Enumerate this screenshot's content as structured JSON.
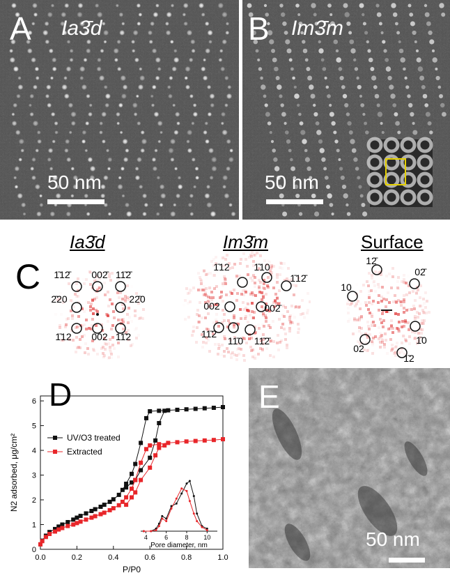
{
  "panelA": {
    "label": "A",
    "symmetry": "Ia3̄d",
    "scale": "50 nm"
  },
  "panelB": {
    "label": "B",
    "symmetry": "Im3̄m",
    "scale": "50 nm"
  },
  "panelC": {
    "label": "C",
    "fft1": {
      "title": "Ia3̄d",
      "spots": [
        "1̄12̄",
        "002̄",
        "11̄2̄",
        "2̄20",
        "22̄0",
        "1̄12",
        "002",
        "11̄2"
      ]
    },
    "fft2": {
      "title": "Im3̄m",
      "spots": [
        "1̄12",
        "1̄10",
        "1̄12̄",
        "002",
        "002̄",
        "11̄2",
        "11̄0",
        "11̄2̄"
      ]
    },
    "fft3": {
      "title": "Surface",
      "spots": [
        "12̄",
        "02̄",
        "10",
        "1̄0",
        "02",
        "1̄2"
      ]
    }
  },
  "panelD": {
    "label": "D",
    "chart_data": [
      {
        "type": "line",
        "xlabel": "P/P0",
        "ylabel": "N2 adsorbed, μg/cm²",
        "xlim": [
          0,
          1.0
        ],
        "ylim": [
          0,
          6.2
        ],
        "xticks": [
          "0.0",
          "0.2",
          "0.4",
          "0.6",
          "0.8",
          "1.0"
        ],
        "yticks": [
          "0",
          "1",
          "2",
          "3",
          "4",
          "5",
          "6"
        ],
        "legend_position": "middle-left",
        "series": [
          {
            "name": "UV/O3 treated",
            "color": "#111111",
            "adsorption": {
              "x": [
                0.0,
                0.01,
                0.03,
                0.05,
                0.08,
                0.1,
                0.12,
                0.15,
                0.18,
                0.2,
                0.22,
                0.25,
                0.28,
                0.3,
                0.33,
                0.35,
                0.38,
                0.4,
                0.43,
                0.45,
                0.47,
                0.5,
                0.52,
                0.55,
                0.58,
                0.6,
                0.65,
                0.7,
                0.75,
                0.8,
                0.85,
                0.9,
                0.95,
                1.0
              ],
              "y": [
                0.2,
                0.35,
                0.55,
                0.7,
                0.82,
                0.92,
                1.0,
                1.1,
                1.2,
                1.28,
                1.35,
                1.45,
                1.55,
                1.62,
                1.72,
                1.8,
                1.92,
                2.02,
                2.2,
                2.4,
                2.65,
                3.05,
                3.45,
                4.3,
                5.3,
                5.58,
                5.6,
                5.62,
                5.64,
                5.66,
                5.68,
                5.7,
                5.72,
                5.75
              ]
            },
            "desorption": {
              "x": [
                0.47,
                0.5,
                0.52,
                0.55,
                0.6,
                0.63,
                0.65,
                0.68
              ],
              "y": [
                2.5,
                2.7,
                2.8,
                3.2,
                3.7,
                4.4,
                5.1,
                5.6
              ]
            }
          },
          {
            "name": "Extracted",
            "color": "#e8262a",
            "adsorption": {
              "x": [
                0.0,
                0.01,
                0.03,
                0.05,
                0.08,
                0.1,
                0.12,
                0.15,
                0.18,
                0.2,
                0.22,
                0.25,
                0.28,
                0.3,
                0.33,
                0.35,
                0.38,
                0.4,
                0.43,
                0.45,
                0.47,
                0.5,
                0.52,
                0.55,
                0.58,
                0.6,
                0.65,
                0.7,
                0.75,
                0.8,
                0.85,
                0.9,
                0.95,
                1.0
              ],
              "y": [
                0.2,
                0.33,
                0.5,
                0.62,
                0.72,
                0.8,
                0.86,
                0.94,
                1.0,
                1.06,
                1.12,
                1.2,
                1.28,
                1.34,
                1.42,
                1.48,
                1.58,
                1.66,
                1.78,
                1.92,
                2.1,
                2.45,
                2.8,
                3.5,
                4.05,
                4.2,
                4.25,
                4.3,
                4.33,
                4.36,
                4.38,
                4.4,
                4.42,
                4.45
              ]
            },
            "desorption": {
              "x": [
                0.47,
                0.5,
                0.52,
                0.55,
                0.6,
                0.63,
                0.65,
                0.68
              ],
              "y": [
                1.8,
                2.1,
                2.3,
                2.8,
                3.3,
                3.8,
                4.1,
                4.2
              ]
            }
          }
        ]
      },
      {
        "type": "line",
        "xlabel": "Pore diameter, nm",
        "xlim": [
          3.5,
          11
        ],
        "xticks": [
          "4",
          "6",
          "8",
          "10"
        ],
        "series": [
          {
            "name": "UV/O3 treated",
            "color": "#111111",
            "x": [
              3.8,
              4.5,
              5.0,
              5.3,
              5.6,
              6.0,
              6.5,
              7.0,
              7.5,
              8.0,
              8.3,
              8.7,
              9.0,
              9.5,
              10.0
            ],
            "y": [
              0.0,
              0.0,
              0.05,
              0.15,
              0.3,
              0.25,
              0.5,
              0.55,
              0.75,
              0.95,
              1.0,
              0.7,
              0.35,
              0.1,
              0.05
            ]
          },
          {
            "name": "Extracted",
            "color": "#e8262a",
            "x": [
              3.8,
              4.5,
              5.0,
              5.3,
              5.6,
              6.0,
              6.5,
              7.0,
              7.5,
              8.0,
              8.3,
              8.7,
              9.0,
              9.5,
              10.0
            ],
            "y": [
              0.0,
              0.0,
              0.02,
              0.1,
              0.25,
              0.2,
              0.45,
              0.65,
              0.85,
              0.8,
              0.6,
              0.35,
              0.2,
              0.08,
              0.02
            ]
          }
        ]
      }
    ]
  },
  "panelE": {
    "label": "E",
    "scale": "50 nm"
  }
}
